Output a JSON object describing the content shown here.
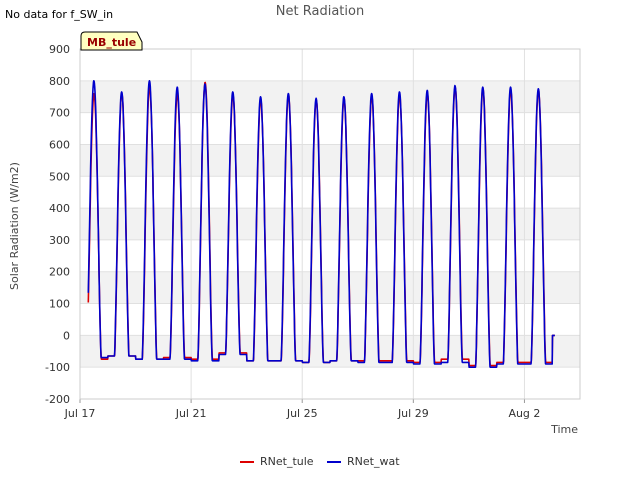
{
  "note": "No data for f_SW_in",
  "site_label": "MB_tule",
  "chart_data": {
    "type": "line",
    "title": "Net Radiation",
    "xlabel": "Time",
    "ylabel": "Solar Radiation (W/m2)",
    "ylim": [
      -200,
      900
    ],
    "yticks": [
      -200,
      -100,
      0,
      100,
      200,
      300,
      400,
      500,
      600,
      700,
      800,
      900
    ],
    "xlim_days": [
      0,
      18
    ],
    "xticks": [
      {
        "day": 0,
        "label": "Jul 17"
      },
      {
        "day": 4,
        "label": "Jul 21"
      },
      {
        "day": 8,
        "label": "Jul 25"
      },
      {
        "day": 12,
        "label": "Jul 29"
      },
      {
        "day": 16,
        "label": "Aug 2"
      }
    ],
    "x_start_day": 0.3,
    "x_end_day": 17.1,
    "legend": "bottom-center",
    "colors": {
      "RNet_tule": "#dd0000",
      "RNet_wat": "#0000cc"
    },
    "daily_peaks": {
      "day_offset": [
        0,
        1,
        2,
        3,
        4,
        5,
        6,
        7,
        8,
        9,
        10,
        11,
        12,
        13,
        14,
        15,
        16,
        17
      ],
      "RNet_wat": [
        800,
        765,
        800,
        780,
        790,
        765,
        750,
        760,
        745,
        750,
        760,
        765,
        770,
        785,
        780,
        780,
        775,
        0
      ],
      "RNet_tule": [
        760,
        760,
        780,
        760,
        795,
        755,
        740,
        755,
        740,
        745,
        750,
        755,
        760,
        780,
        775,
        770,
        770,
        0
      ]
    },
    "night_values": {
      "RNet_wat": [
        -70,
        -65,
        -75,
        -75,
        -80,
        -60,
        -80,
        -80,
        -85,
        -80,
        -85,
        -85,
        -90,
        -85,
        -100,
        -90,
        -90,
        0
      ],
      "RNet_tule": [
        -75,
        -65,
        -75,
        -70,
        -75,
        -55,
        -80,
        -80,
        -85,
        -80,
        -80,
        -80,
        -85,
        -75,
        -95,
        -85,
        -85,
        0
      ]
    },
    "series": [
      {
        "name": "RNet_tule"
      },
      {
        "name": "RNet_wat"
      }
    ]
  }
}
